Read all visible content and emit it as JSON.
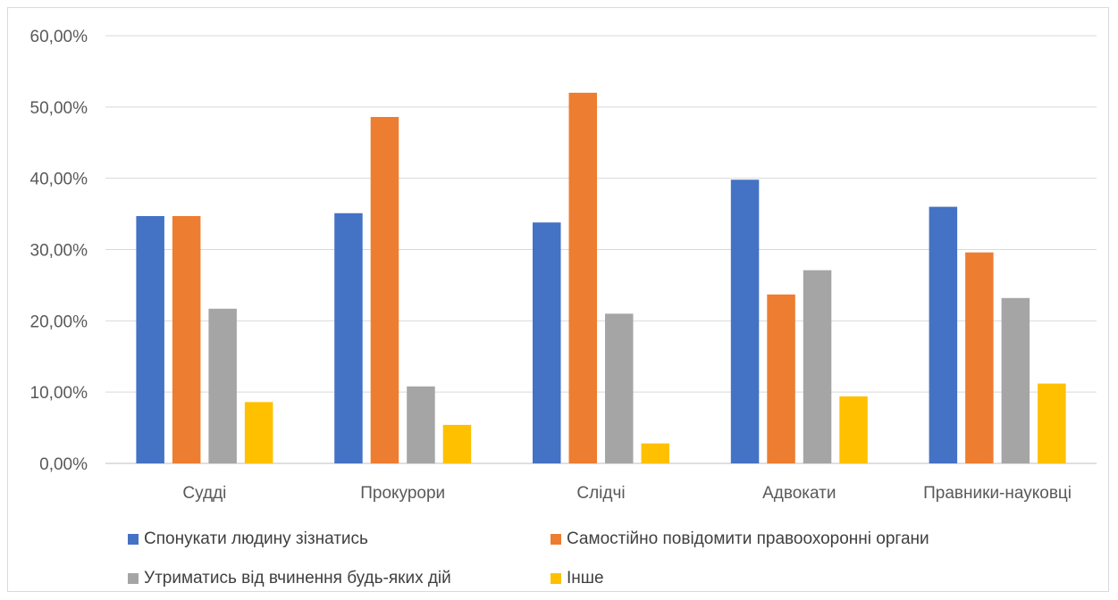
{
  "chart_data": {
    "type": "bar",
    "categories": [
      "Судді",
      "Прокурори",
      "Слідчі",
      "Адвокати",
      "Правники-науковці"
    ],
    "series": [
      {
        "name": "Спонукати людину зізнатись",
        "color": "#4472C4",
        "values": [
          34.7,
          35.1,
          33.8,
          39.8,
          36.0
        ]
      },
      {
        "name": "Самостійно повідомити правоохоронні органи",
        "color": "#ED7D31",
        "values": [
          34.7,
          48.6,
          52.0,
          23.7,
          29.6
        ]
      },
      {
        "name": "Утриматись від вчинення будь-яких дій",
        "color": "#A5A5A5",
        "values": [
          21.7,
          10.8,
          21.0,
          27.1,
          23.2
        ]
      },
      {
        "name": "Інше",
        "color": "#FFC000",
        "values": [
          8.6,
          5.4,
          2.8,
          9.4,
          11.2
        ]
      }
    ],
    "yticks": [
      "0,00%",
      "10,00%",
      "20,00%",
      "30,00%",
      "40,00%",
      "50,00%",
      "60,00%"
    ],
    "ylim": [
      0,
      60
    ],
    "title": "",
    "xlabel": "",
    "ylabel": "",
    "grid": true,
    "legend_position": "bottom"
  }
}
